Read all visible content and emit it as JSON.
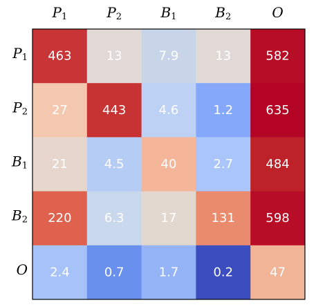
{
  "chart_data": {
    "type": "heatmap",
    "x_labels": [
      {
        "base": "P",
        "sub": "1"
      },
      {
        "base": "P",
        "sub": "2"
      },
      {
        "base": "B",
        "sub": "1"
      },
      {
        "base": "B",
        "sub": "2"
      },
      {
        "base": "O",
        "sub": ""
      }
    ],
    "y_labels": [
      {
        "base": "P",
        "sub": "1"
      },
      {
        "base": "P",
        "sub": "2"
      },
      {
        "base": "B",
        "sub": "1"
      },
      {
        "base": "B",
        "sub": "2"
      },
      {
        "base": "O",
        "sub": ""
      }
    ],
    "cell_labels": [
      [
        "463",
        "13",
        "7.9",
        "13",
        "582"
      ],
      [
        "27",
        "443",
        "4.6",
        "1.2",
        "635"
      ],
      [
        "21",
        "4.5",
        "40",
        "2.7",
        "484"
      ],
      [
        "220",
        "6.3",
        "17",
        "131",
        "598"
      ],
      [
        "2.4",
        "0.7",
        "1.7",
        "0.2",
        "47"
      ]
    ],
    "cell_colors": [
      [
        "#c83537",
        "#e0d9d5",
        "#c8d5e8",
        "#e0d9d5",
        "#b80d26"
      ],
      [
        "#f3c8ae",
        "#c73233",
        "#bcd1f3",
        "#85a8fb",
        "#b40426"
      ],
      [
        "#e6d6cc",
        "#b5ccf4",
        "#f4b599",
        "#a9c5f9",
        "#bd2229"
      ],
      [
        "#df624e",
        "#cad8ee",
        "#e3d8d0",
        "#ea8b6e",
        "#b70d26"
      ],
      [
        "#a7c2f9",
        "#6a90ee",
        "#95b4f8",
        "#3c4dc0",
        "#f1b497"
      ]
    ],
    "colormap": "coolwarm",
    "grid": false
  }
}
